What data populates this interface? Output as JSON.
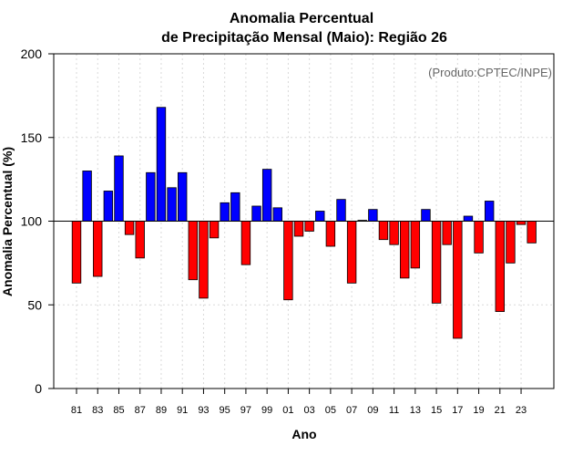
{
  "chart_data": {
    "type": "bar",
    "title_line1": "Anomalia Percentual",
    "title_line2": "de Precipitação Mensal (Maio): Região 26",
    "credit": "(Produto:CPTEC/INPE)",
    "xlabel": "Ano",
    "ylabel": "Anomalia Percentual (%)",
    "ylim": [
      0,
      200
    ],
    "yticks": [
      0,
      50,
      100,
      150,
      200
    ],
    "baseline": 100,
    "grid": true,
    "colors": {
      "above": "#0000ff",
      "below": "#ff0000"
    },
    "categories": [
      "1981",
      "1982",
      "1983",
      "1984",
      "1985",
      "1986",
      "1987",
      "1988",
      "1989",
      "1990",
      "1991",
      "1992",
      "1993",
      "1994",
      "1995",
      "1996",
      "1997",
      "1998",
      "1999",
      "2000",
      "2001",
      "2002",
      "2003",
      "2004",
      "2005",
      "2006",
      "2007",
      "2008",
      "2009",
      "2010",
      "2011",
      "2012",
      "2013",
      "2014",
      "2015",
      "2016",
      "2017",
      "2018",
      "2019",
      "2020",
      "2021",
      "2022",
      "2023",
      "2024"
    ],
    "values": [
      63,
      130,
      67,
      118,
      139,
      92,
      78,
      129,
      168,
      120,
      129,
      65,
      54,
      90,
      111,
      117,
      74,
      109,
      131,
      108,
      53,
      91,
      94,
      106,
      85,
      113,
      63,
      100.5,
      107,
      89,
      86,
      66,
      72,
      107,
      51,
      86,
      30,
      103,
      81,
      112,
      46,
      75,
      98,
      87
    ],
    "xtick_labels": [
      "81",
      "83",
      "85",
      "87",
      "89",
      "91",
      "93",
      "95",
      "97",
      "99",
      "01",
      "03",
      "05",
      "07",
      "09",
      "11",
      "13",
      "15",
      "17",
      "19",
      "21",
      "23"
    ]
  }
}
